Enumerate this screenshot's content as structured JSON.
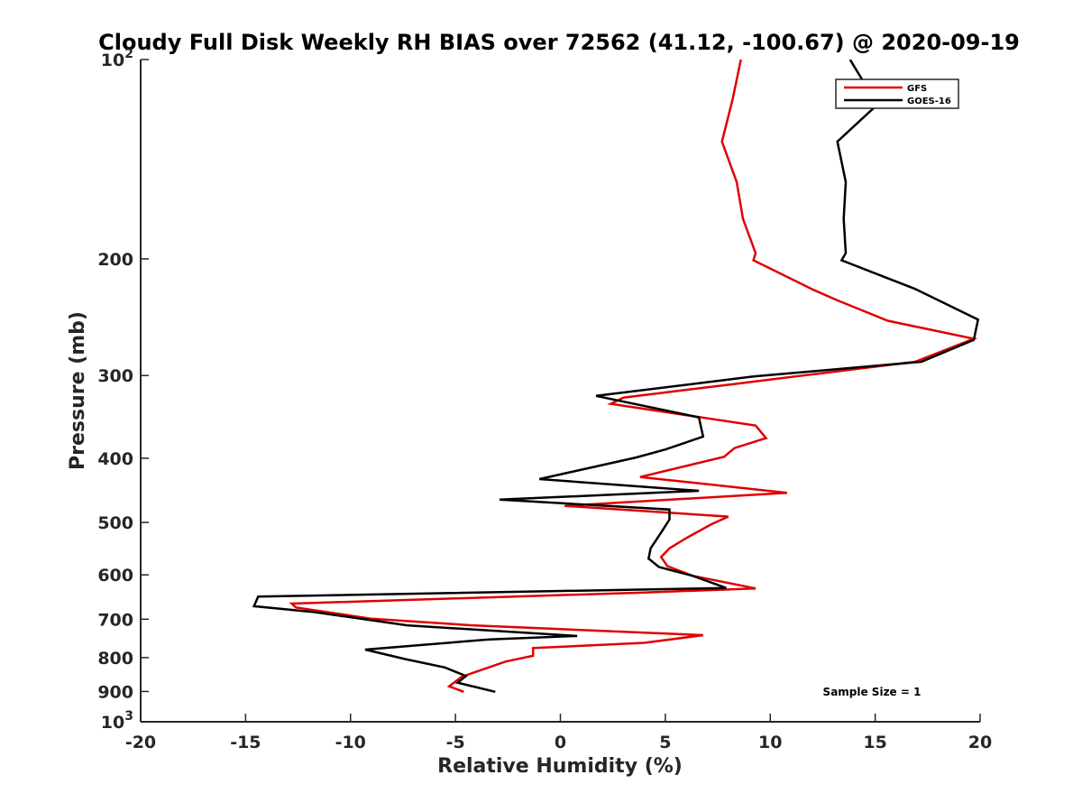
{
  "chart_data": {
    "type": "line",
    "title": "Cloudy Full Disk Weekly RH BIAS over 72562 (41.12, -100.67) @ 2020-09-19",
    "xlabel": "Relative Humidity (%)",
    "ylabel": "Pressure (mb)",
    "xlim": [
      -20,
      20
    ],
    "ylim": [
      100,
      1000
    ],
    "y_scale": "log",
    "y_reversed": true,
    "x_ticks": [
      "-20",
      "-15",
      "-10",
      "-5",
      "0",
      "5",
      "10",
      "15",
      "20"
    ],
    "y_ticks": [
      {
        "value": 100,
        "base": "10",
        "exp": "2"
      },
      {
        "value": 200,
        "label": "200"
      },
      {
        "value": 300,
        "label": "300"
      },
      {
        "value": 400,
        "label": "400"
      },
      {
        "value": 500,
        "label": "500"
      },
      {
        "value": 600,
        "label": "600"
      },
      {
        "value": 700,
        "label": "700"
      },
      {
        "value": 800,
        "label": "800"
      },
      {
        "value": 900,
        "label": "900"
      },
      {
        "value": 1000,
        "base": "10",
        "exp": "3"
      }
    ],
    "grid": false,
    "legend_position": "top-right",
    "annotation": "Sample Size = 1",
    "series": [
      {
        "name": "GFS",
        "color": "#e00000",
        "points": [
          [
            8.6,
            100
          ],
          [
            8.2,
            115
          ],
          [
            7.7,
            133
          ],
          [
            8.4,
            153
          ],
          [
            8.7,
            174
          ],
          [
            9.3,
            196
          ],
          [
            9.2,
            201
          ],
          [
            12.1,
            223
          ],
          [
            13.2,
            231
          ],
          [
            15.6,
            248
          ],
          [
            19.7,
            264
          ],
          [
            16.9,
            286
          ],
          [
            12.3,
            298
          ],
          [
            8.3,
            309
          ],
          [
            3.0,
            324
          ],
          [
            2.4,
            331
          ],
          [
            9.3,
            357
          ],
          [
            9.8,
            373
          ],
          [
            8.3,
            386
          ],
          [
            7.8,
            398
          ],
          [
            3.8,
            427
          ],
          [
            10.8,
            451
          ],
          [
            0.2,
            472
          ],
          [
            8.0,
            490
          ],
          [
            7.2,
            503
          ],
          [
            6.0,
            528
          ],
          [
            5.2,
            547
          ],
          [
            4.8,
            564
          ],
          [
            5.1,
            582
          ],
          [
            6.3,
            602
          ],
          [
            9.3,
            629
          ],
          [
            4.0,
            638
          ],
          [
            -12.8,
            663
          ],
          [
            -12.6,
            672
          ],
          [
            -9.0,
            699
          ],
          [
            -4.2,
            715
          ],
          [
            6.8,
            740
          ],
          [
            4.0,
            760
          ],
          [
            -1.3,
            774
          ],
          [
            -1.3,
            795
          ],
          [
            -2.6,
            811
          ],
          [
            -4.7,
            855
          ],
          [
            -5.3,
            884
          ],
          [
            -4.6,
            901
          ]
        ]
      },
      {
        "name": "GOES-16",
        "color": "#000000",
        "points": [
          [
            13.8,
            100
          ],
          [
            15.1,
            117
          ],
          [
            13.2,
            133
          ],
          [
            13.6,
            153
          ],
          [
            13.5,
            174
          ],
          [
            13.6,
            196
          ],
          [
            13.4,
            201
          ],
          [
            16.9,
            222
          ],
          [
            19.9,
            247
          ],
          [
            19.7,
            265
          ],
          [
            17.2,
            286
          ],
          [
            9.2,
            301
          ],
          [
            1.7,
            322
          ],
          [
            6.6,
            347
          ],
          [
            6.8,
            371
          ],
          [
            5.0,
            388
          ],
          [
            3.6,
            399
          ],
          [
            -1.0,
            430
          ],
          [
            6.6,
            448
          ],
          [
            -2.9,
            462
          ],
          [
            5.2,
            478
          ],
          [
            5.2,
            495
          ],
          [
            4.8,
            518
          ],
          [
            4.3,
            547
          ],
          [
            4.2,
            567
          ],
          [
            4.7,
            584
          ],
          [
            6.3,
            602
          ],
          [
            7.9,
            628
          ],
          [
            -14.4,
            647
          ],
          [
            -14.6,
            669
          ],
          [
            -11.7,
            683
          ],
          [
            -7.3,
            715
          ],
          [
            0.8,
            742
          ],
          [
            -3.4,
            751
          ],
          [
            -9.3,
            778
          ],
          [
            -7.4,
            804
          ],
          [
            -5.5,
            828
          ],
          [
            -4.5,
            853
          ],
          [
            -4.9,
            873
          ],
          [
            -3.1,
            901
          ]
        ]
      }
    ]
  }
}
